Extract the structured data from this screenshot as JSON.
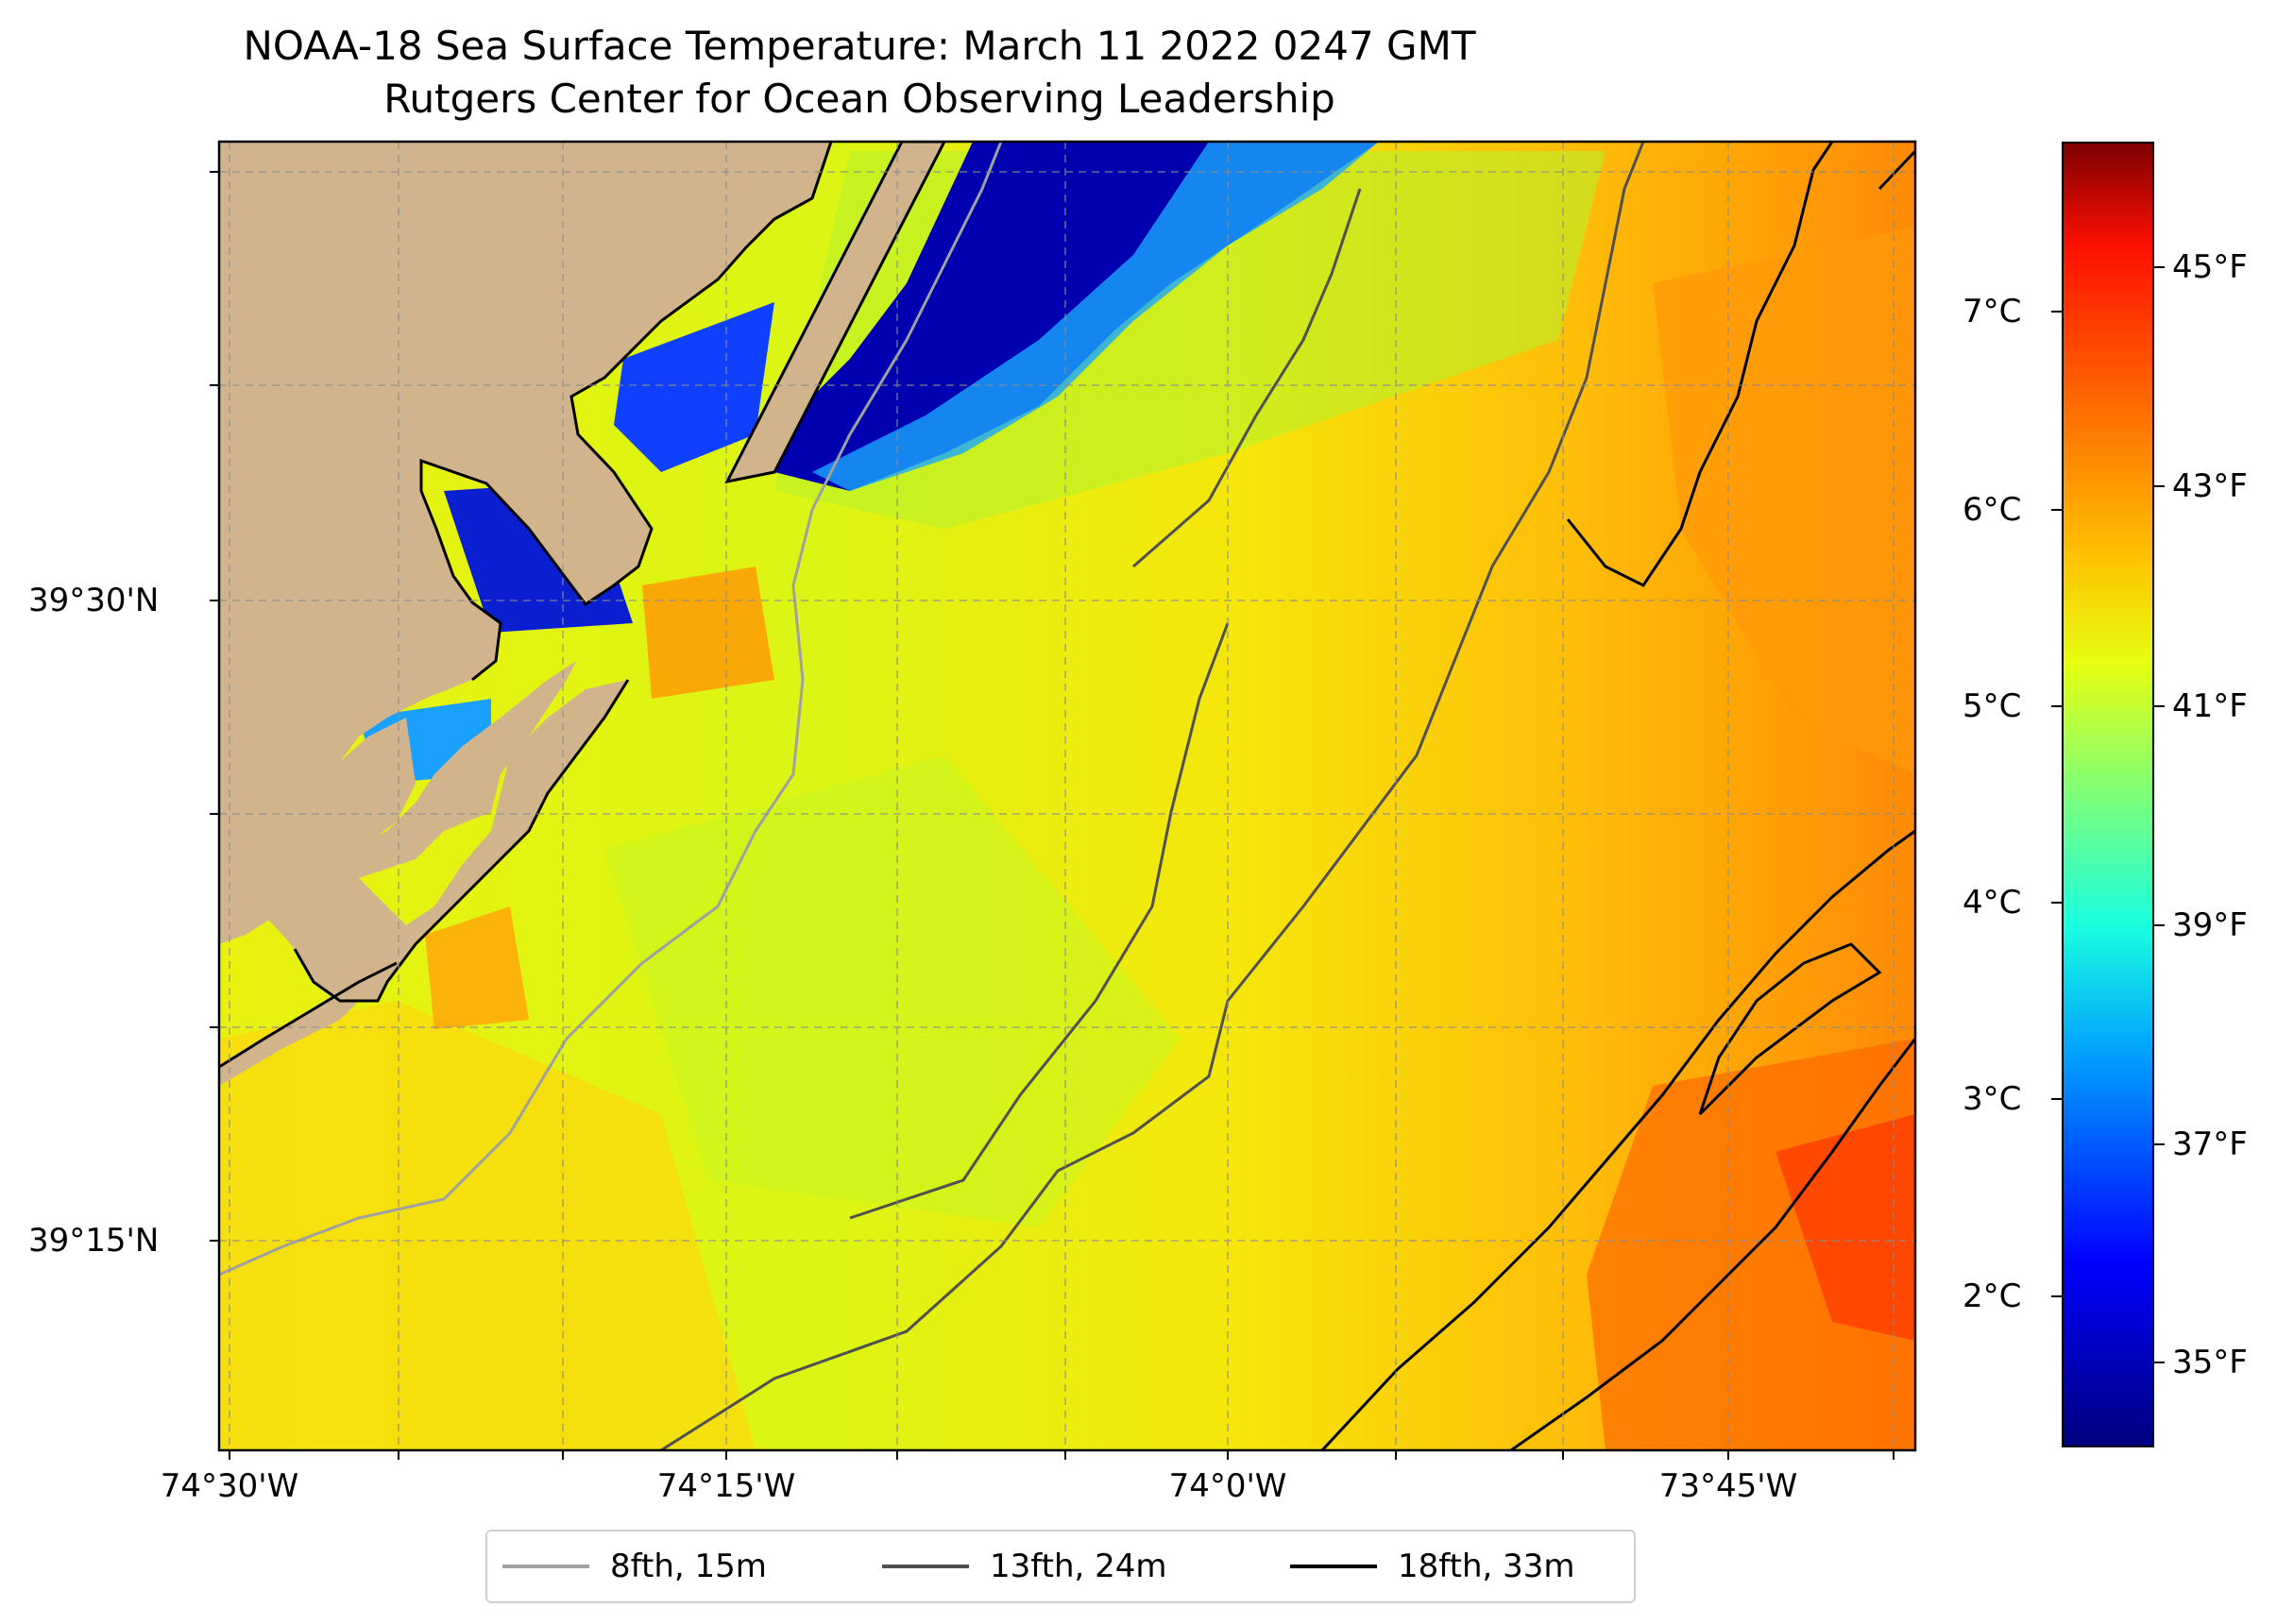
{
  "title": {
    "line1": "NOAA-18 Sea Surface Temperature: March 11 2022 0247 GMT",
    "line2": "Rutgers Center for Ocean Observing Leadership"
  },
  "axes": {
    "longitude_labels": [
      "74°30'W",
      "74°15'W",
      "74°0'W",
      "73°45'W"
    ],
    "latitude_labels": [
      "39°30'N",
      "39°15'N"
    ]
  },
  "colorbar": {
    "celsius_labels": [
      "7°C",
      "6°C",
      "5°C",
      "4°C",
      "3°C",
      "2°C"
    ],
    "fahrenheit_labels": [
      "45°F",
      "43°F",
      "41°F",
      "39°F",
      "37°F",
      "35°F"
    ],
    "colormap": "jet",
    "range_celsius": [
      1.3,
      7.7
    ]
  },
  "legend": {
    "items": [
      {
        "label": "8fth, 15m",
        "color": "#a0a0a0"
      },
      {
        "label": "13fth, 24m",
        "color": "#505050"
      },
      {
        "label": "18fth, 33m",
        "color": "#000000"
      }
    ]
  },
  "colors": {
    "land": "#d2b48c",
    "coast": "#000000",
    "grid": "#8c8c8c"
  }
}
